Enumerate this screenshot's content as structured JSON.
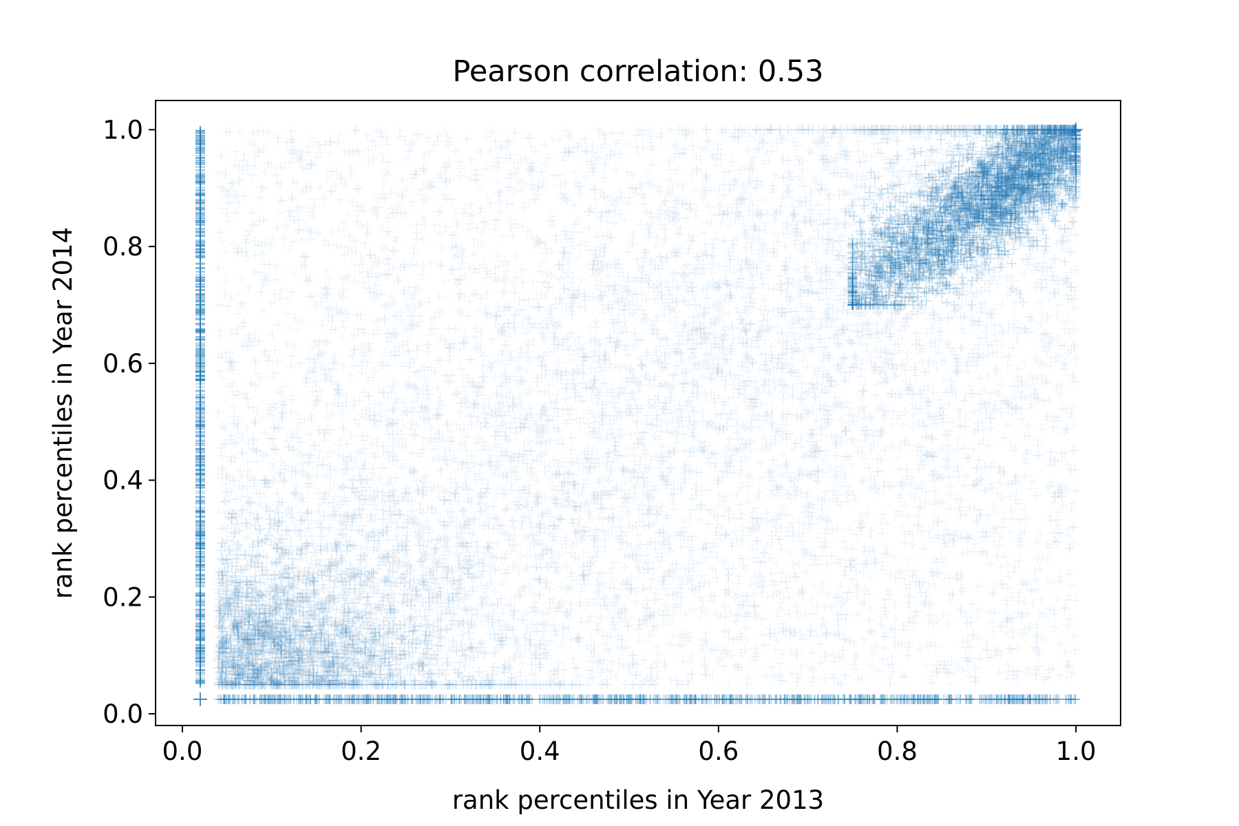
{
  "chart_data": {
    "type": "scatter",
    "title": "Pearson correlation: 0.53",
    "xlabel": "rank percentiles in Year 2013",
    "ylabel": "rank percentiles in Year 2014",
    "xlim": [
      -0.03,
      1.05
    ],
    "ylim": [
      -0.02,
      1.05
    ],
    "xticks": [
      0.0,
      0.2,
      0.4,
      0.6,
      0.8,
      1.0
    ],
    "xtick_labels": [
      "0.0",
      "0.2",
      "0.4",
      "0.6",
      "0.8",
      "1.0"
    ],
    "yticks": [
      0.0,
      0.2,
      0.4,
      0.6,
      0.8,
      1.0
    ],
    "ytick_labels": [
      "0.0",
      "0.2",
      "0.4",
      "0.6",
      "0.8",
      "1.0"
    ],
    "grid": false,
    "marker": "+",
    "color": "#1f77b4",
    "pearson_correlation": 0.53,
    "x_range": [
      0.04,
      1.0
    ],
    "y_range": [
      0.05,
      1.0
    ],
    "x_zero_value": 0.02,
    "y_zero_value": 0.025,
    "dense_cluster": {
      "x": [
        0.8,
        1.0
      ],
      "y": [
        0.75,
        1.0
      ]
    },
    "secondary_cluster": {
      "x": [
        0.04,
        0.3
      ],
      "y": [
        0.05,
        0.3
      ]
    }
  }
}
